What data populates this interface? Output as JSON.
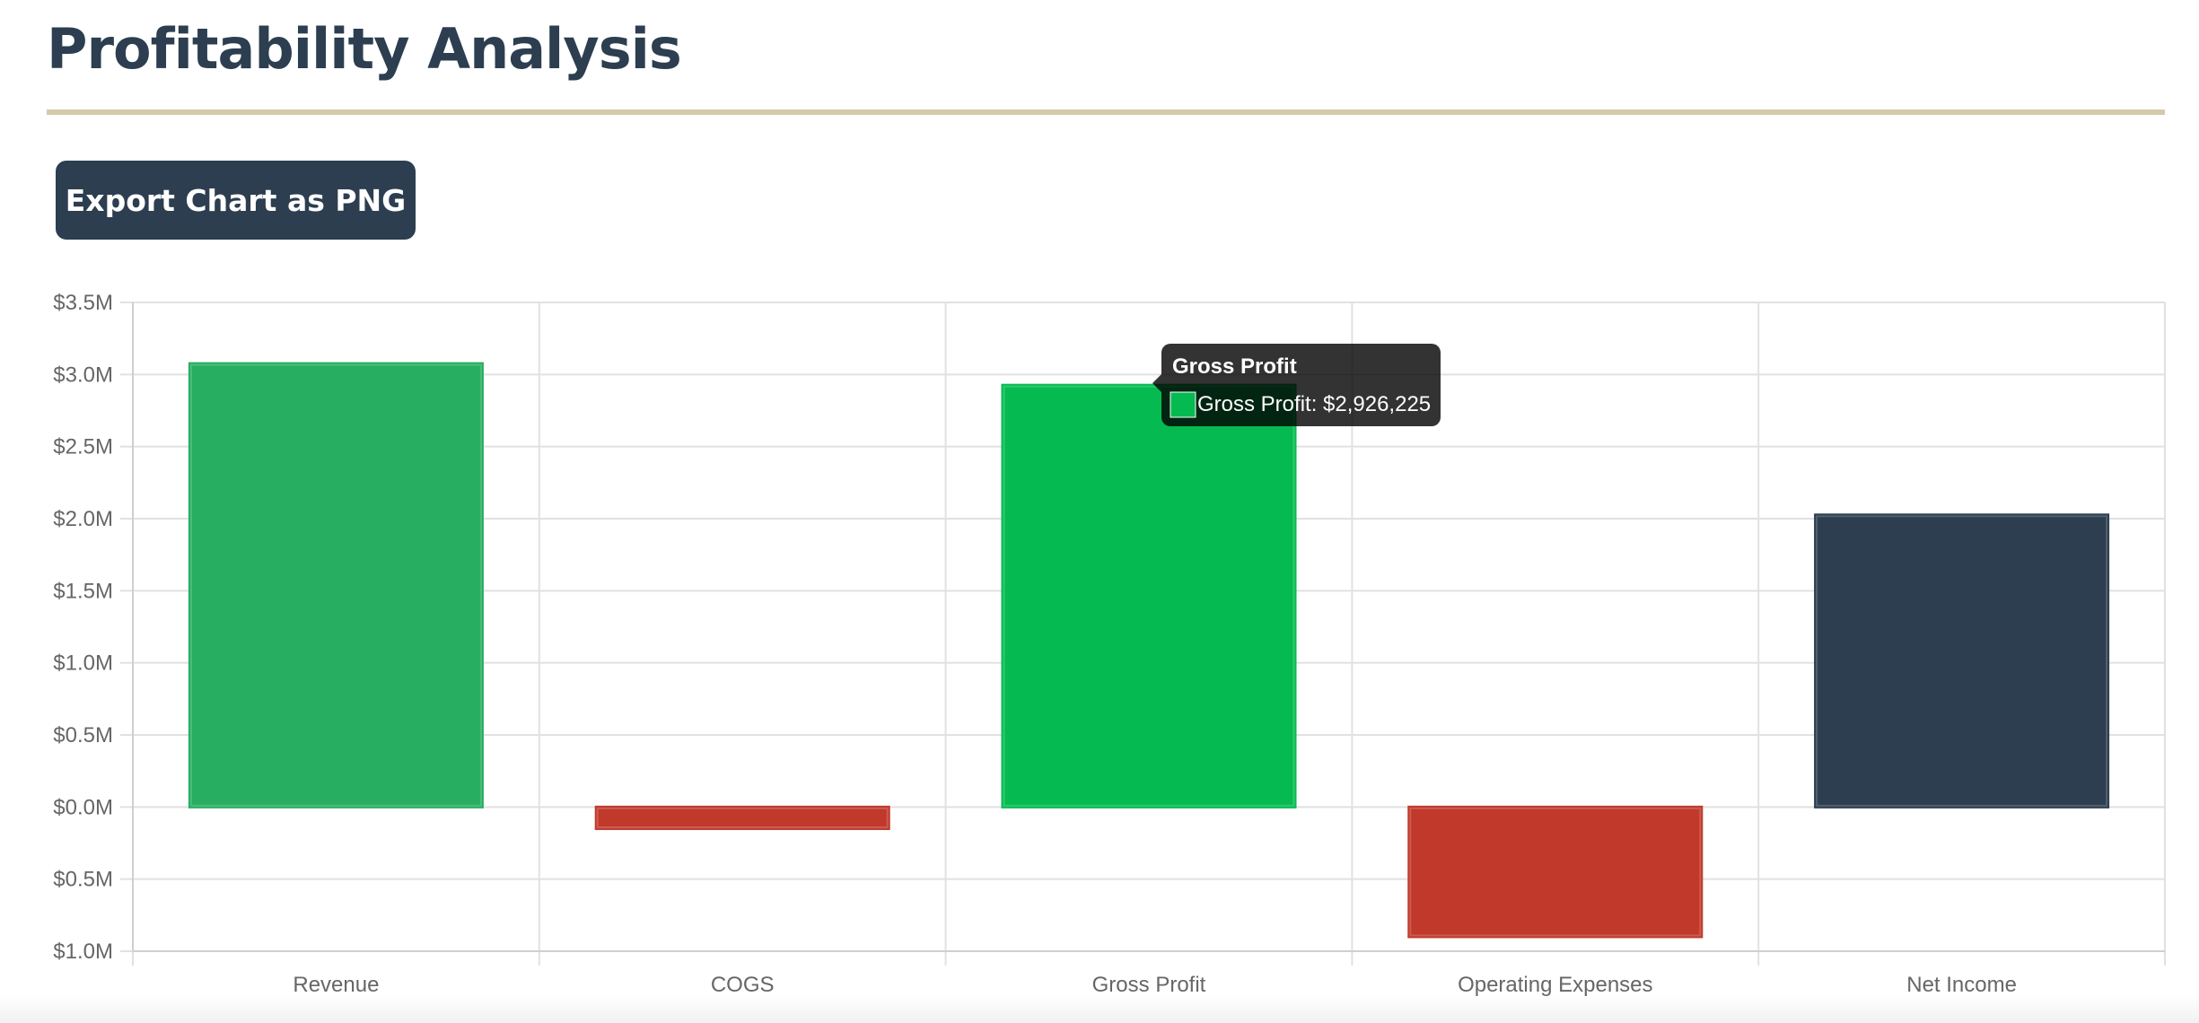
{
  "header": {
    "title": "Profitability Analysis"
  },
  "toolbar": {
    "export_label": "Export Chart as PNG"
  },
  "colors": {
    "positive": "#27ae60",
    "positive_hover": "#05bb51",
    "negative": "#c0392b",
    "net": "#2c3e50",
    "grid": "#e1e1e1",
    "axis_text": "#666666",
    "title_rule": "#d6c9aa"
  },
  "chart_data": {
    "type": "bar",
    "title": "",
    "xlabel": "",
    "ylabel": "",
    "categories": [
      "Revenue",
      "COGS",
      "Gross Profit",
      "Operating Expenses",
      "Net Income"
    ],
    "values": [
      3076225,
      -150000,
      2926225,
      -900000,
      2026225
    ],
    "bar_colors": [
      "#27ae60",
      "#c0392b",
      "#05bb51",
      "#c0392b",
      "#2c3e50"
    ],
    "ylim": [
      -1000000,
      3500000
    ],
    "y_ticks": [
      {
        "value": 3500000,
        "label": "$3.5M"
      },
      {
        "value": 3000000,
        "label": "$3.0M"
      },
      {
        "value": 2500000,
        "label": "$2.5M"
      },
      {
        "value": 2000000,
        "label": "$2.0M"
      },
      {
        "value": 1500000,
        "label": "$1.5M"
      },
      {
        "value": 1000000,
        "label": "$1.0M"
      },
      {
        "value": 500000,
        "label": "$0.5M"
      },
      {
        "value": 0,
        "label": "$0.0M"
      },
      {
        "value": -500000,
        "label": "$0.5M"
      },
      {
        "value": -1000000,
        "label": "$1.0M"
      }
    ],
    "grid": true,
    "legend": "none",
    "tooltip": {
      "category_index": 2,
      "title": "Gross Profit",
      "text": "Gross Profit: $2,926,225"
    }
  }
}
